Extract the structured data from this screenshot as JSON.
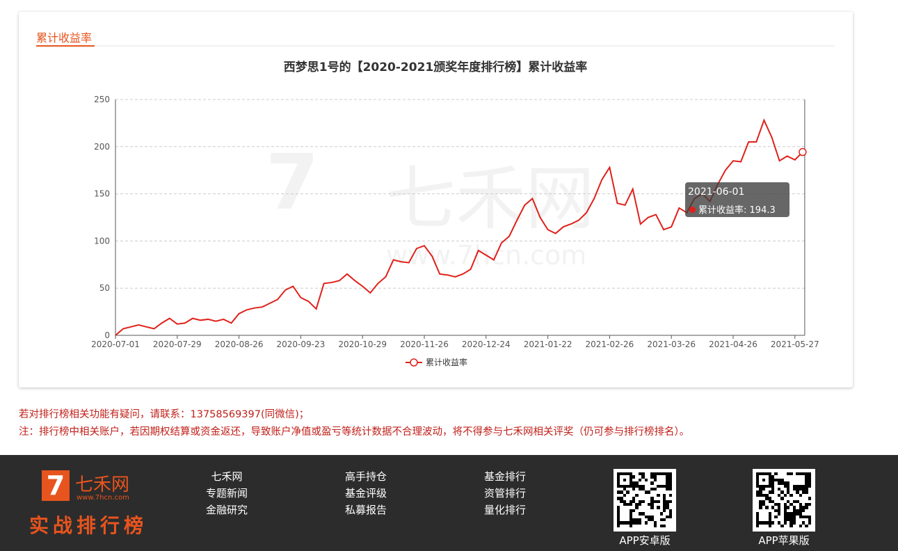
{
  "section_title": "累计收益率",
  "watermark": {
    "brand": "七禾网",
    "url": "www.7hcn.com"
  },
  "chart_data": {
    "type": "line",
    "title": "西梦思1号的【2020-2021颁奖年度排行榜】累计收益率",
    "categories": [
      "2020-07-01",
      null,
      null,
      null,
      null,
      null,
      null,
      null,
      "2020-07-29",
      null,
      null,
      null,
      null,
      null,
      null,
      null,
      "2020-08-26",
      null,
      null,
      null,
      null,
      null,
      null,
      null,
      "2020-09-23",
      null,
      null,
      null,
      null,
      null,
      null,
      null,
      "2020-10-29",
      null,
      null,
      null,
      null,
      null,
      null,
      null,
      "2020-11-26",
      null,
      null,
      null,
      null,
      null,
      null,
      null,
      "2020-12-24",
      null,
      null,
      null,
      null,
      null,
      null,
      null,
      "2021-01-22",
      null,
      null,
      null,
      null,
      null,
      null,
      null,
      "2021-02-26",
      null,
      null,
      null,
      null,
      null,
      null,
      null,
      "2021-03-26",
      null,
      null,
      null,
      null,
      null,
      null,
      null,
      "2021-04-26",
      null,
      null,
      null,
      null,
      null,
      null,
      null,
      "2021-05-27",
      null
    ],
    "series": [
      {
        "name": "累计收益率",
        "color": "#e0201a",
        "values": [
          0,
          7,
          9,
          11,
          9,
          7,
          13,
          18,
          12,
          13,
          18,
          16,
          17,
          15,
          17,
          13,
          23,
          27,
          29,
          30,
          34,
          38,
          48,
          52,
          40,
          36,
          28,
          55,
          56,
          58,
          65,
          58,
          52,
          45,
          55,
          62,
          80,
          78,
          77,
          92,
          95,
          84,
          65,
          64,
          62,
          65,
          70,
          90,
          85,
          80,
          98,
          105,
          122,
          138,
          145,
          125,
          112,
          108,
          115,
          118,
          122,
          130,
          145,
          165,
          178,
          140,
          138,
          155,
          118,
          125,
          128,
          112,
          115,
          135,
          130,
          145,
          150,
          142,
          160,
          175,
          185,
          184,
          205,
          205,
          228,
          210,
          185,
          190,
          186,
          194.3
        ]
      }
    ],
    "ylim": [
      0,
      250
    ],
    "yticks": [
      0,
      50,
      100,
      150,
      200,
      250
    ],
    "grid": true,
    "tooltip": {
      "x": "2021-06-01"
    }
  },
  "notes": [
    "若对排行榜相关功能有疑问，请联系：13758569397(同微信)；",
    "注：排行榜中相关账户，若因期权结算或资金返还，导致账户净值或盈亏等统计数据不合理波动，将不得参与七禾网相关评奖（仍可参与排行榜排名）。"
  ],
  "footer": {
    "logo": "七禾网",
    "logo_url": "www.7hcn.com",
    "slogan": "实战排行榜",
    "links": [
      [
        "七禾网",
        "专题新闻",
        "金融研究"
      ],
      [
        "高手持仓",
        "基金评级",
        "私募报告"
      ],
      [
        "基金排行",
        "资管排行",
        "量化排行"
      ]
    ],
    "apps": [
      "APP安卓版",
      "APP苹果版"
    ]
  }
}
